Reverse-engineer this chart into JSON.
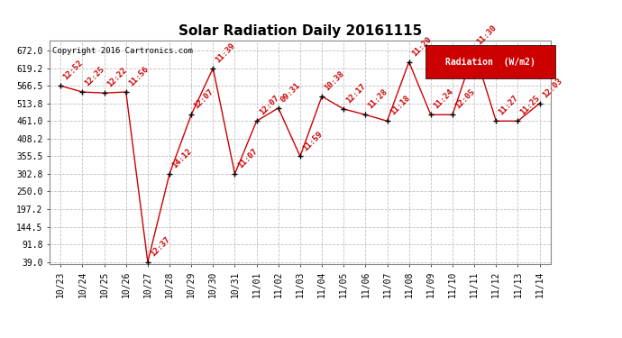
{
  "title": "Solar Radiation Daily 20161115",
  "copyright": "Copyright 2016 Cartronics.com",
  "legend_label": "Radiation  (W/m2)",
  "x_labels": [
    "10/23",
    "10/24",
    "10/25",
    "10/26",
    "10/27",
    "10/28",
    "10/29",
    "10/30",
    "10/31",
    "11/01",
    "11/02",
    "11/03",
    "11/04",
    "11/05",
    "11/06",
    "11/07",
    "11/08",
    "11/09",
    "11/10",
    "11/11",
    "11/12",
    "11/13",
    "11/14"
  ],
  "y_values": [
    566.5,
    548.0,
    545.0,
    548.0,
    39.0,
    302.8,
    480.0,
    619.2,
    302.8,
    461.0,
    500.0,
    355.5,
    535.0,
    497.0,
    480.0,
    461.0,
    638.0,
    480.0,
    480.0,
    672.0,
    461.0,
    461.0,
    513.8
  ],
  "time_labels": [
    "12:52",
    "12:25",
    "12:22",
    "11:56",
    "12:37",
    "14:12",
    "12:07",
    "11:39",
    "11:07",
    "12:07",
    "09:31",
    "11:59",
    "10:38",
    "12:17",
    "11:28",
    "11:18",
    "11:20",
    "11:24",
    "12:05",
    "11:30",
    "11:27",
    "11:25",
    "12:03"
  ],
  "ylim": [
    39.0,
    672.0
  ],
  "yticks": [
    39.0,
    91.8,
    144.5,
    197.2,
    250.0,
    302.8,
    355.5,
    408.2,
    461.0,
    513.8,
    566.5,
    619.2,
    672.0
  ],
  "line_color": "#cc0000",
  "marker_color": "#000000",
  "bg_color": "#ffffff",
  "grid_color": "#c0c0c0",
  "title_fontsize": 11,
  "tick_fontsize": 7,
  "annotation_fontsize": 6.5,
  "legend_bg": "#cc0000",
  "legend_fg": "#ffffff"
}
